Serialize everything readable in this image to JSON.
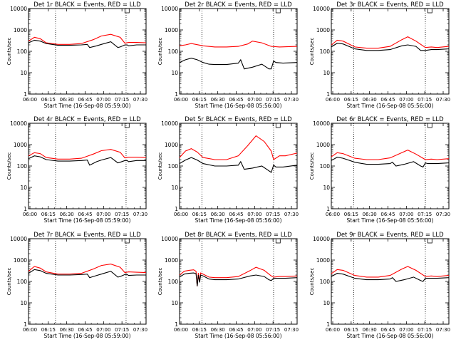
{
  "style": {
    "background": "#ffffff",
    "events_color": "#000000",
    "lld_color": "#ff0000"
  },
  "chart_data": [
    {
      "type": "line",
      "panel": 1,
      "title": "Det 1r BLACK = Events, RED = LLD",
      "xlabel": "Start Time (16-Sep-08 05:59:00)",
      "ylabel": "Counts/sec",
      "xlim": [
        0,
        100
      ],
      "ylim": [
        1,
        10000
      ],
      "yscale": "log",
      "x_ticks": [
        "06:00",
        "06:15",
        "06:30",
        "06:45",
        "07:00",
        "07:15",
        "07:30"
      ],
      "y_ticks": [
        "1",
        "10",
        "100",
        "1000",
        "10000"
      ],
      "saa_markers": [
        23,
        83
      ],
      "series": [
        {
          "name": "RED = LLD",
          "color": "#ff0000",
          "x": [
            0,
            5,
            10,
            15,
            25,
            35,
            45,
            55,
            62,
            70,
            78,
            82,
            85,
            92,
            100
          ],
          "y": [
            300,
            450,
            390,
            250,
            210,
            210,
            230,
            350,
            520,
            620,
            450,
            240,
            260,
            260,
            250
          ]
        },
        {
          "name": "BLACK = Events",
          "color": "#000000",
          "x": [
            0,
            5,
            10,
            15,
            25,
            35,
            45,
            50,
            52,
            58,
            62,
            70,
            76,
            78,
            82,
            84,
            85,
            92,
            100
          ],
          "y": [
            250,
            330,
            300,
            230,
            190,
            190,
            200,
            210,
            150,
            180,
            210,
            280,
            150,
            160,
            200,
            200,
            180,
            200,
            200
          ]
        }
      ]
    },
    {
      "type": "line",
      "panel": 2,
      "title": "Det 2r BLACK = Events, RED = LLD",
      "xlabel": "Start Time (16-Sep-08 05:56:00)",
      "ylabel": "Counts/sec",
      "xlim": [
        0,
        100
      ],
      "ylim": [
        1,
        10000
      ],
      "yscale": "log",
      "x_ticks": [
        "06:00",
        "06:15",
        "06:30",
        "06:45",
        "07:00",
        "07:15",
        "07:30"
      ],
      "y_ticks": [
        "1",
        "10",
        "100",
        "1000",
        "10000"
      ],
      "saa_markers": [
        19,
        80
      ],
      "series": [
        {
          "name": "RED = LLD",
          "color": "#ff0000",
          "x": [
            0,
            5,
            10,
            20,
            30,
            40,
            50,
            58,
            62,
            70,
            78,
            85,
            100
          ],
          "y": [
            180,
            200,
            230,
            180,
            160,
            160,
            170,
            220,
            300,
            250,
            170,
            160,
            170
          ]
        },
        {
          "name": "BLACK = Events",
          "color": "#000000",
          "x": [
            0,
            5,
            10,
            15,
            20,
            25,
            30,
            40,
            50,
            52,
            55,
            62,
            70,
            76,
            78,
            80,
            82,
            88,
            100
          ],
          "y": [
            30,
            40,
            48,
            40,
            30,
            25,
            24,
            24,
            28,
            40,
            15,
            18,
            25,
            15,
            15,
            35,
            30,
            28,
            30
          ]
        }
      ]
    },
    {
      "type": "line",
      "panel": 3,
      "title": "Det 3r BLACK = Events, RED = LLD",
      "xlabel": "Start Time (16-Sep-08 05:56:00)",
      "ylabel": "Counts/sec",
      "xlim": [
        0,
        100
      ],
      "ylim": [
        1,
        10000
      ],
      "yscale": "log",
      "x_ticks": [
        "06:00",
        "06:15",
        "06:30",
        "06:45",
        "07:00",
        "07:15",
        "07:30"
      ],
      "y_ticks": [
        "1",
        "10",
        "100",
        "1000",
        "10000"
      ],
      "saa_markers": [
        19,
        80
      ],
      "series": [
        {
          "name": "RED = LLD",
          "color": "#ff0000",
          "x": [
            0,
            5,
            10,
            20,
            30,
            40,
            50,
            60,
            65,
            72,
            80,
            85,
            90,
            100
          ],
          "y": [
            200,
            330,
            300,
            160,
            140,
            140,
            170,
            350,
            480,
            300,
            150,
            160,
            150,
            170
          ]
        },
        {
          "name": "BLACK = Events",
          "color": "#000000",
          "x": [
            0,
            5,
            10,
            20,
            30,
            40,
            50,
            60,
            65,
            72,
            76,
            80,
            85,
            90,
            100
          ],
          "y": [
            160,
            240,
            220,
            130,
            110,
            110,
            120,
            180,
            200,
            170,
            110,
            110,
            120,
            120,
            130
          ]
        }
      ]
    },
    {
      "type": "line",
      "panel": 4,
      "title": "Det 4r BLACK = Events, RED = LLD",
      "xlabel": "Start Time (16-Sep-08 05:59:00)",
      "ylabel": "Counts/sec",
      "xlim": [
        0,
        100
      ],
      "ylim": [
        1,
        10000
      ],
      "yscale": "log",
      "x_ticks": [
        "06:00",
        "06:15",
        "06:30",
        "06:45",
        "07:00",
        "07:15",
        "07:30"
      ],
      "y_ticks": [
        "1",
        "10",
        "100",
        "1000",
        "10000"
      ],
      "saa_markers": [
        23,
        83
      ],
      "series": [
        {
          "name": "RED = LLD",
          "color": "#ff0000",
          "x": [
            0,
            5,
            10,
            15,
            25,
            35,
            45,
            55,
            62,
            70,
            78,
            82,
            85,
            92,
            100
          ],
          "y": [
            300,
            420,
            380,
            250,
            210,
            210,
            230,
            360,
            520,
            600,
            440,
            240,
            260,
            260,
            250
          ]
        },
        {
          "name": "BLACK = Events",
          "color": "#000000",
          "x": [
            0,
            5,
            10,
            15,
            25,
            35,
            45,
            50,
            52,
            58,
            62,
            70,
            76,
            78,
            82,
            84,
            85,
            92,
            100
          ],
          "y": [
            220,
            300,
            270,
            200,
            170,
            170,
            180,
            190,
            110,
            160,
            190,
            250,
            140,
            150,
            180,
            180,
            160,
            180,
            180
          ]
        }
      ]
    },
    {
      "type": "line",
      "panel": 5,
      "title": "Det 5r BLACK = Events, RED = LLD",
      "xlabel": "Start Time (16-Sep-08 05:56:00)",
      "ylabel": "Counts/sec",
      "xlim": [
        0,
        100
      ],
      "ylim": [
        1,
        10000
      ],
      "yscale": "log",
      "x_ticks": [
        "06:00",
        "06:15",
        "06:30",
        "06:45",
        "07:00",
        "07:15",
        "07:30"
      ],
      "y_ticks": [
        "1",
        "10",
        "100",
        "1000",
        "10000"
      ],
      "saa_markers": [
        19,
        80
      ],
      "series": [
        {
          "name": "RED = LLD",
          "color": "#ff0000",
          "x": [
            0,
            5,
            10,
            15,
            20,
            30,
            40,
            50,
            58,
            65,
            72,
            78,
            80,
            85,
            90,
            100
          ],
          "y": [
            250,
            500,
            650,
            450,
            250,
            200,
            200,
            300,
            900,
            2600,
            1400,
            500,
            200,
            300,
            300,
            400
          ]
        },
        {
          "name": "BLACK = Events",
          "color": "#000000",
          "x": [
            0,
            5,
            10,
            15,
            20,
            30,
            40,
            50,
            52,
            55,
            62,
            70,
            76,
            78,
            80,
            82,
            88,
            100
          ],
          "y": [
            130,
            190,
            250,
            190,
            130,
            100,
            100,
            110,
            160,
            70,
            80,
            100,
            60,
            50,
            110,
            90,
            90,
            110
          ]
        }
      ]
    },
    {
      "type": "line",
      "panel": 6,
      "title": "Det 6r BLACK = Events, RED = LLD",
      "xlabel": "Start Time (16-Sep-08 05:56:00)",
      "ylabel": "Counts/sec",
      "xlim": [
        0,
        100
      ],
      "ylim": [
        1,
        10000
      ],
      "yscale": "log",
      "x_ticks": [
        "06:00",
        "06:15",
        "06:30",
        "06:45",
        "07:00",
        "07:15",
        "07:30"
      ],
      "y_ticks": [
        "1",
        "10",
        "100",
        "1000",
        "10000"
      ],
      "saa_markers": [
        19,
        80
      ],
      "series": [
        {
          "name": "RED = LLD",
          "color": "#ff0000",
          "x": [
            0,
            5,
            10,
            20,
            30,
            40,
            50,
            60,
            65,
            72,
            80,
            85,
            90,
            100
          ],
          "y": [
            270,
            420,
            380,
            230,
            200,
            200,
            240,
            420,
            560,
            360,
            200,
            210,
            200,
            220
          ]
        },
        {
          "name": "BLACK = Events",
          "color": "#000000",
          "x": [
            0,
            5,
            10,
            20,
            30,
            40,
            50,
            52,
            55,
            62,
            70,
            76,
            78,
            80,
            82,
            90,
            100
          ],
          "y": [
            180,
            260,
            230,
            150,
            120,
            120,
            130,
            150,
            100,
            120,
            160,
            100,
            90,
            140,
            130,
            130,
            140
          ]
        }
      ]
    },
    {
      "type": "line",
      "panel": 7,
      "title": "Det 7r BLACK = Events, RED = LLD",
      "xlabel": "Start Time (16-Sep-08 05:59:00)",
      "ylabel": "Counts/sec",
      "xlim": [
        0,
        100
      ],
      "ylim": [
        1,
        10000
      ],
      "yscale": "log",
      "x_ticks": [
        "06:00",
        "06:15",
        "06:30",
        "06:45",
        "07:00",
        "07:15",
        "07:30"
      ],
      "y_ticks": [
        "1",
        "10",
        "100",
        "1000",
        "10000"
      ],
      "saa_markers": [
        23,
        83
      ],
      "series": [
        {
          "name": "RED = LLD",
          "color": "#ff0000",
          "x": [
            0,
            5,
            10,
            15,
            25,
            35,
            45,
            55,
            62,
            70,
            78,
            82,
            85,
            92,
            100
          ],
          "y": [
            300,
            500,
            420,
            280,
            220,
            220,
            240,
            380,
            560,
            650,
            460,
            260,
            280,
            270,
            260
          ]
        },
        {
          "name": "BLACK = Events",
          "color": "#000000",
          "x": [
            0,
            5,
            10,
            15,
            25,
            35,
            45,
            50,
            52,
            58,
            62,
            70,
            76,
            78,
            82,
            84,
            85,
            92,
            100
          ],
          "y": [
            240,
            360,
            320,
            240,
            200,
            200,
            210,
            220,
            150,
            190,
            220,
            300,
            160,
            170,
            210,
            210,
            190,
            200,
            200
          ]
        }
      ]
    },
    {
      "type": "line",
      "panel": 8,
      "title": "Det 8r BLACK = Events, RED = LLD",
      "xlabel": "Start Time (16-Sep-08 05:56:00)",
      "ylabel": "Counts/sec",
      "xlim": [
        0,
        100
      ],
      "ylim": [
        1,
        10000
      ],
      "yscale": "log",
      "x_ticks": [
        "06:00",
        "06:15",
        "06:30",
        "06:45",
        "07:00",
        "07:15",
        "07:30"
      ],
      "y_ticks": [
        "1",
        "10",
        "100",
        "1000",
        "10000"
      ],
      "saa_markers": [
        19,
        80
      ],
      "series": [
        {
          "name": "RED = LLD",
          "color": "#ff0000",
          "x": [
            0,
            4,
            8,
            12,
            14,
            15,
            16,
            17,
            18,
            20,
            25,
            30,
            40,
            50,
            60,
            65,
            72,
            78,
            80,
            85,
            90,
            100
          ],
          "y": [
            200,
            300,
            330,
            350,
            300,
            60,
            250,
            100,
            250,
            220,
            160,
            150,
            150,
            170,
            320,
            460,
            330,
            180,
            160,
            170,
            170,
            180
          ]
        },
        {
          "name": "BLACK = Events",
          "color": "#000000",
          "x": [
            0,
            4,
            8,
            12,
            14,
            15,
            16,
            17,
            18,
            20,
            25,
            30,
            40,
            50,
            60,
            65,
            72,
            76,
            78,
            80,
            85,
            90,
            100
          ],
          "y": [
            160,
            220,
            240,
            250,
            230,
            60,
            200,
            90,
            200,
            180,
            130,
            120,
            120,
            130,
            180,
            200,
            170,
            120,
            110,
            140,
            140,
            140,
            150
          ]
        }
      ]
    },
    {
      "type": "line",
      "panel": 9,
      "title": "Det 9r BLACK = Events, RED = LLD",
      "xlabel": "Start Time (16-Sep-08 05:56:00)",
      "ylabel": "Counts/sec",
      "xlim": [
        0,
        100
      ],
      "ylim": [
        1,
        10000
      ],
      "yscale": "log",
      "x_ticks": [
        "06:00",
        "06:15",
        "06:30",
        "06:45",
        "07:00",
        "07:15",
        "07:30"
      ],
      "y_ticks": [
        "1",
        "10",
        "100",
        "1000",
        "10000"
      ],
      "saa_markers": [
        19,
        80
      ],
      "series": [
        {
          "name": "RED = LLD",
          "color": "#ff0000",
          "x": [
            0,
            5,
            10,
            20,
            30,
            40,
            50,
            60,
            65,
            72,
            80,
            85,
            90,
            100
          ],
          "y": [
            230,
            360,
            330,
            190,
            160,
            160,
            190,
            380,
            500,
            330,
            170,
            180,
            170,
            190
          ]
        },
        {
          "name": "BLACK = Events",
          "color": "#000000",
          "x": [
            0,
            5,
            10,
            20,
            30,
            40,
            50,
            52,
            55,
            62,
            70,
            76,
            78,
            80,
            82,
            90,
            100
          ],
          "y": [
            170,
            240,
            220,
            140,
            120,
            120,
            130,
            150,
            100,
            120,
            160,
            110,
            100,
            140,
            140,
            140,
            150
          ]
        }
      ]
    }
  ]
}
